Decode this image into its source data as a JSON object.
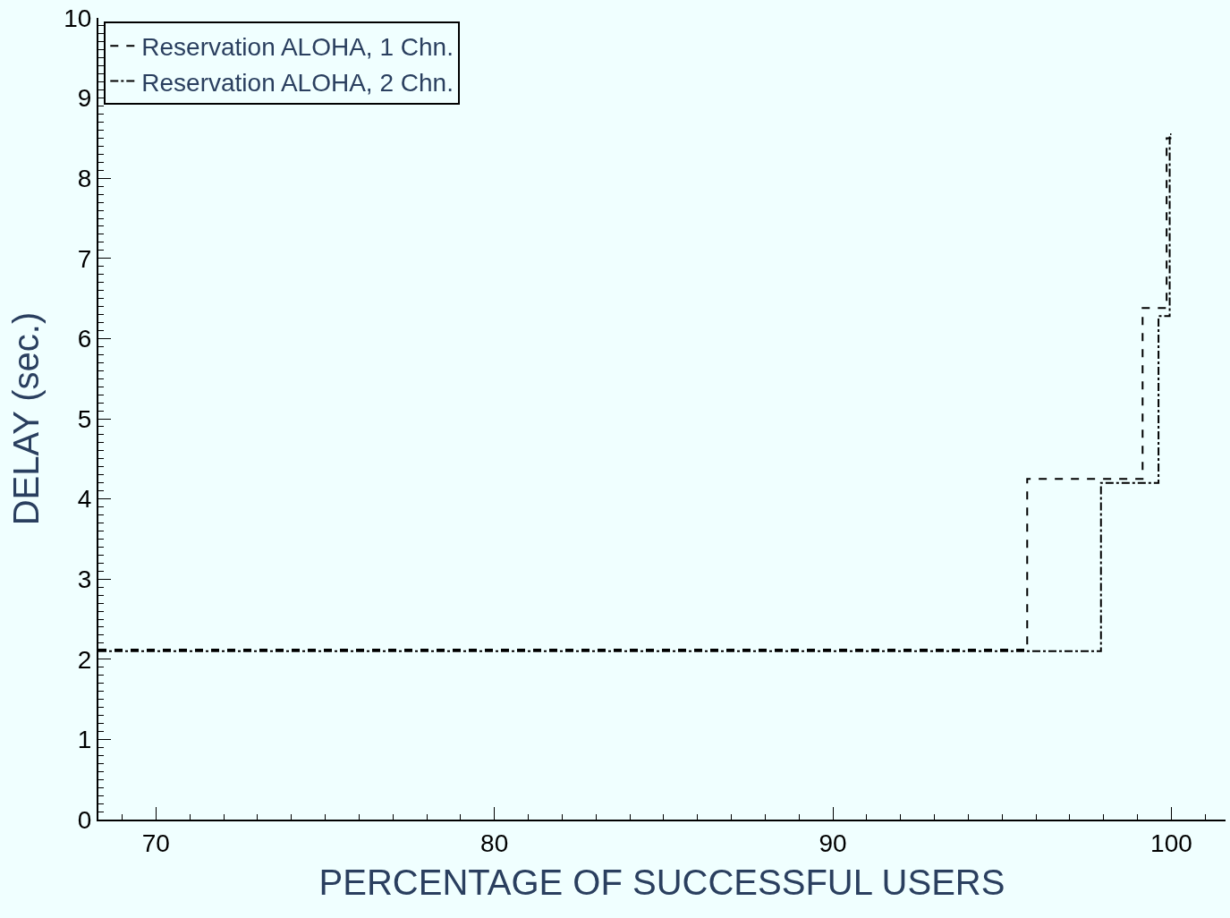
{
  "chart_data": {
    "type": "step",
    "xlabel": "PERCENTAGE OF SUCCESSFUL USERS",
    "ylabel": "DELAY (sec.)",
    "series": [
      {
        "name": "Reservation ALOHA, 1 Chn.",
        "color": "#000000",
        "line_style": "dashed",
        "x": [
          68.3,
          95.74,
          99.15,
          99.86,
          100
        ],
        "values": [
          2.12,
          4.25,
          6.38,
          8.5,
          8.5
        ]
      },
      {
        "name": "Reservation ALOHA, 2 Chn.",
        "color": "#000000",
        "line_style": "dashdot",
        "x": [
          68.3,
          97.92,
          99.62,
          99.95,
          100
        ],
        "values": [
          2.1,
          4.2,
          6.28,
          8.55,
          8.55
        ]
      }
    ],
    "xlim": [
      68.3,
      101.6
    ],
    "xticks": [
      70,
      80,
      90,
      100
    ],
    "ylim": [
      0,
      10
    ],
    "yticks": [
      0,
      1,
      2,
      3,
      4,
      5,
      6,
      7,
      8,
      9,
      10
    ],
    "grid": false,
    "legend": "top left",
    "marker": "none"
  }
}
